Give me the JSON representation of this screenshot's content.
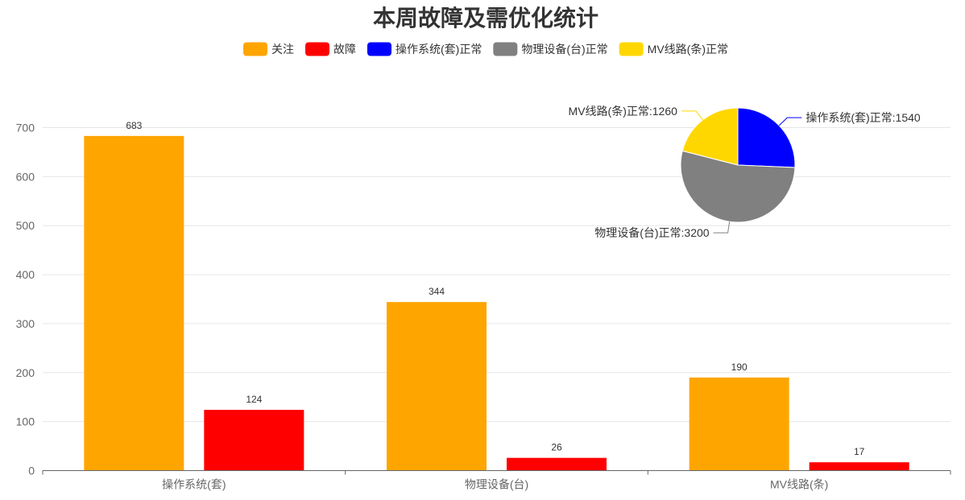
{
  "chart_data": [
    {
      "type": "bar",
      "title": "本周故障及需优化统计",
      "categories": [
        "操作系统(套)",
        "物理设备(台)",
        "MV线路(条)"
      ],
      "series": [
        {
          "name": "关注",
          "color": "#FFA500",
          "values": [
            683,
            344,
            190
          ]
        },
        {
          "name": "故障",
          "color": "#FF0000",
          "values": [
            124,
            26,
            17
          ]
        }
      ],
      "ylim": [
        0,
        700
      ],
      "yticks": [
        0,
        100,
        200,
        300,
        400,
        500,
        600,
        700
      ],
      "xlabel": "",
      "ylabel": "",
      "grid": true,
      "legend_position": "top-center"
    },
    {
      "type": "pie",
      "slices": [
        {
          "name": "操作系统(套)正常",
          "value": 1540,
          "color": "#0000FF",
          "label": "操作系统(套)正常:1540"
        },
        {
          "name": "物理设备(台)正常",
          "value": 3200,
          "color": "#808080",
          "label": "物理设备(台)正常:3200"
        },
        {
          "name": "MV线路(条)正常",
          "value": 1260,
          "color": "#FFD700",
          "label": "MV线路(条)正常:1260"
        }
      ]
    }
  ],
  "legend": [
    {
      "name": "关注",
      "color": "#FFA500"
    },
    {
      "name": "故障",
      "color": "#FF0000"
    },
    {
      "name": "操作系统(套)正常",
      "color": "#0000FF"
    },
    {
      "name": "物理设备(台)正常",
      "color": "#808080"
    },
    {
      "name": "MV线路(条)正常",
      "color": "#FFD700"
    }
  ]
}
